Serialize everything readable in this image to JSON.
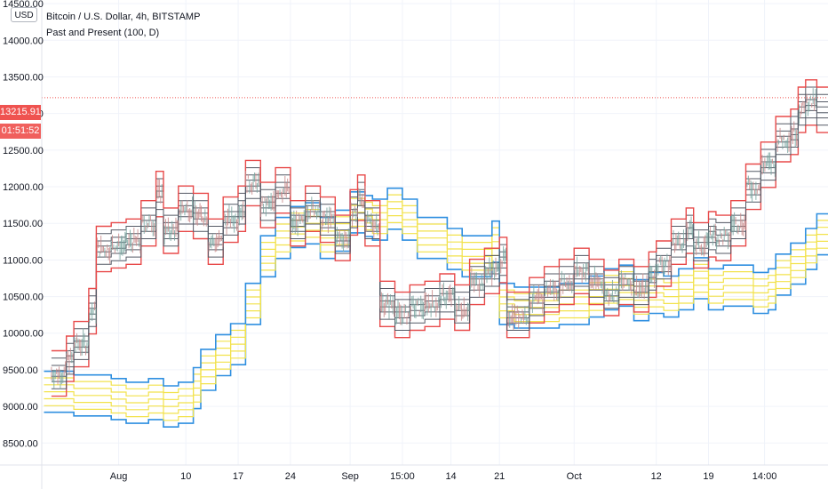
{
  "header": {
    "currency": "USD",
    "title": "Bitcoin / U.S. Dollar, 4h, BITSTAMP",
    "indicator": "Past and Present (100, D)"
  },
  "last_price": {
    "value": "13215.91",
    "countdown": "01:51:52"
  },
  "colors": {
    "price_line": "#ef5350",
    "grid": "#f0f3fa",
    "red_band": "#e84a4a",
    "gray_band": "#555a66",
    "yellow_band": "#f2e24c",
    "blue_band": "#2f8fe0",
    "candles": "#8a9a99"
  },
  "chart_data": {
    "type": "line",
    "title": "Bitcoin / U.S. Dollar, 4h, BITSTAMP",
    "xlabel": "",
    "ylabel": "",
    "ylim": [
      8200,
      14550
    ],
    "y_ticks": [
      "8500.00",
      "9000.00",
      "9500.00",
      "10000.00",
      "10500.00",
      "11000.00",
      "11500.00",
      "12000.00",
      "12500.00",
      "13000.00",
      "13500.00",
      "14000.00",
      "14500.00"
    ],
    "x_ticks": [
      "Aug",
      "10",
      "17",
      "24",
      "Sep",
      "15:00",
      "14",
      "21",
      "Oct",
      "12",
      "19",
      "14:00"
    ],
    "x_tick_day": [
      0,
      9,
      16,
      23,
      31,
      38,
      44.5,
      51,
      61,
      72,
      79,
      86.5
    ],
    "x_range": [
      -10.3,
      95
    ],
    "grid": true,
    "series": [
      {
        "role": "present-bands",
        "x": [
          -9,
          -7,
          -6,
          -4,
          -3,
          -1,
          1,
          3,
          5,
          6,
          8,
          10,
          12,
          14,
          16,
          17,
          19,
          21,
          23,
          25,
          27,
          29,
          31,
          32,
          33,
          35,
          37,
          39,
          41,
          43,
          45,
          47,
          49,
          51,
          52,
          55,
          57,
          59,
          61,
          63,
          65,
          67,
          69,
          71,
          72,
          74,
          76,
          77,
          79,
          80,
          82,
          84,
          86,
          88,
          90,
          91,
          92,
          93.5
        ],
        "center": [
          9450,
          9650,
          9850,
          10300,
          11150,
          11200,
          11250,
          11500,
          11900,
          11400,
          11700,
          11600,
          11250,
          11550,
          11700,
          12050,
          11750,
          11950,
          11500,
          11700,
          11550,
          11300,
          11650,
          11850,
          11500,
          10400,
          10250,
          10350,
          10400,
          10500,
          10350,
          10700,
          10850,
          11000,
          10250,
          10450,
          10600,
          10700,
          10850,
          10700,
          10550,
          10700,
          10600,
          10800,
          10950,
          11250,
          11400,
          11200,
          11350,
          11300,
          11500,
          12000,
          12300,
          12650,
          12750,
          13050,
          13150,
          13050
        ]
      },
      {
        "role": "past-bands",
        "x": [
          -10,
          -6,
          -3,
          -1,
          1,
          4,
          6,
          8,
          10,
          11,
          13,
          15,
          17,
          19,
          21,
          23,
          25,
          27,
          29,
          31,
          33,
          34,
          36,
          38,
          40,
          42,
          44,
          46,
          48,
          50,
          51,
          53,
          56,
          59,
          61,
          63,
          65,
          67,
          69,
          71,
          73,
          75,
          77,
          79,
          81,
          83,
          85,
          87,
          88,
          90,
          92,
          93.5
        ],
        "center": [
          9200,
          9150,
          9150,
          9100,
          9050,
          9100,
          9000,
          9050,
          9250,
          9500,
          9700,
          9850,
          10400,
          11050,
          11300,
          11450,
          11500,
          11300,
          11400,
          11650,
          11600,
          11550,
          11700,
          11550,
          11300,
          11300,
          11150,
          11050,
          11050,
          11250,
          10400,
          10350,
          10350,
          10400,
          10400,
          10500,
          10600,
          10650,
          10450,
          10550,
          10500,
          10600,
          10750,
          10600,
          10650,
          10650,
          10550,
          10600,
          10800,
          10950,
          11150,
          11350
        ]
      }
    ]
  }
}
